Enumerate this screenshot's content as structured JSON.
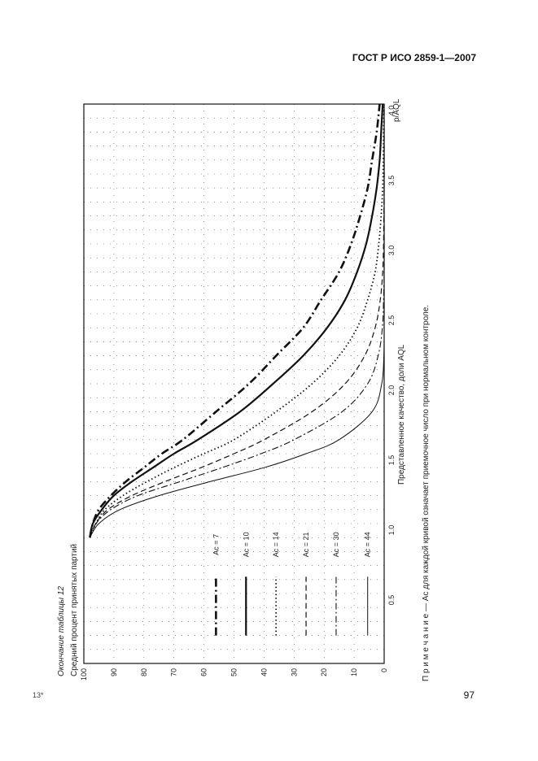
{
  "page": {
    "standard": "ГОСТ Р ИСО 2859-1—2007",
    "page_number": "97",
    "corner_mark": "13*",
    "table_caption": "Окончание таблицы 12",
    "note": "П р и м е ч а н и е — Ас для каждой кривой означает приемочное число при нормальном контроле."
  },
  "chart_data": {
    "type": "line",
    "ylabel": "Средний процент принятых партий",
    "xlabel": "Представленное качество, доли AQL",
    "xunit": "p/AQL",
    "xlim": [
      0,
      4.0
    ],
    "ylim": [
      0,
      100
    ],
    "x_ticks": [
      "0.5",
      "1.0",
      "1.5",
      "2.0",
      "2.5",
      "3.0",
      "3.5",
      "4.0"
    ],
    "y_ticks": [
      "0",
      "10",
      "20",
      "30",
      "40",
      "50",
      "60",
      "70",
      "80",
      "90",
      "100"
    ],
    "grid": true,
    "orientation": "rotated 90° counter-clockwise on page",
    "x": [
      0.9,
      1.0,
      1.1,
      1.2,
      1.3,
      1.4,
      1.5,
      1.6,
      1.8,
      2.0,
      2.2,
      2.4,
      2.6,
      2.8,
      3.0,
      3.2,
      3.4,
      3.6,
      3.8,
      4.0
    ],
    "series": [
      {
        "name": "Ас = 7",
        "style": "dashdot-bold",
        "values": [
          98,
          97,
          95,
          91,
          86,
          80,
          74,
          67,
          56,
          45,
          36,
          27,
          21,
          15,
          11,
          8,
          5.5,
          4,
          2.5,
          1.5
        ]
      },
      {
        "name": "Ас = 10",
        "style": "solid-bold",
        "values": [
          98,
          97,
          94,
          90,
          84,
          77,
          70,
          62,
          48,
          37,
          27,
          19,
          13,
          9,
          6,
          4,
          2.5,
          1.5,
          1,
          0.5
        ]
      },
      {
        "name": "Ас = 14",
        "style": "dotted",
        "values": [
          98,
          96,
          93,
          87,
          79,
          70,
          60,
          50,
          36,
          24,
          15,
          9,
          5.5,
          3,
          1.8,
          1,
          0.5,
          0.3,
          0.2,
          0.1
        ]
      },
      {
        "name": "Ас = 21",
        "style": "dashed",
        "values": [
          98,
          96,
          92,
          84,
          73,
          61,
          50,
          40,
          24,
          13,
          6.5,
          3,
          1.3,
          0.5,
          0.2,
          0.1,
          0,
          0,
          0,
          0
        ]
      },
      {
        "name": "Ас = 30",
        "style": "dashdot-thin",
        "values": [
          98,
          96,
          91,
          82,
          68,
          54,
          41,
          30,
          14,
          5.5,
          2,
          0.6,
          0.2,
          0,
          0,
          0,
          0,
          0,
          0,
          0
        ]
      },
      {
        "name": "Ас = 44",
        "style": "solid-thin",
        "values": [
          98,
          95,
          88,
          75,
          58,
          40,
          26,
          15,
          4,
          0.8,
          0.1,
          0,
          0,
          0,
          0,
          0,
          0,
          0,
          0,
          0
        ]
      }
    ]
  }
}
